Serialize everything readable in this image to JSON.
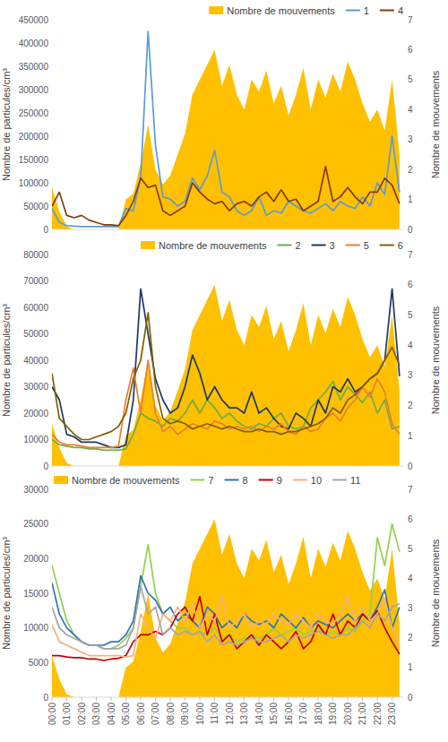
{
  "chart_data": [
    {
      "type": "line",
      "x": [
        0,
        0.5,
        1,
        1.5,
        2,
        2.5,
        3,
        3.5,
        4,
        4.5,
        5,
        5.5,
        6,
        6.5,
        7,
        7.5,
        8,
        8.5,
        9,
        9.5,
        10,
        10.5,
        11,
        11.5,
        12,
        12.5,
        13,
        13.5,
        14,
        14.5,
        15,
        15.5,
        16,
        16.5,
        17,
        17.5,
        18,
        18.5,
        19,
        19.5,
        20,
        20.5,
        21,
        21.5,
        22,
        22.5,
        23,
        23.5
      ],
      "xlim": [
        0,
        23.75
      ],
      "ylim": [
        0,
        450000
      ],
      "yticks": [
        0,
        50000,
        100000,
        150000,
        200000,
        250000,
        300000,
        350000,
        400000,
        450000
      ],
      "y2lim": [
        0,
        7
      ],
      "y2ticks": [
        0,
        1,
        2,
        3,
        4,
        5,
        6,
        7
      ],
      "y_label": "Nombre de particules/cm³",
      "y2_label": "Nombre de mouvements",
      "legend": "upper right",
      "series": [
        {
          "name": "Nombre de mouvements",
          "type": "area",
          "axis": "y2",
          "color": "#ffc000",
          "values": [
            1.4,
            0.6,
            0.1,
            0,
            0,
            0,
            0,
            0,
            0,
            0,
            1.0,
            1.2,
            2.2,
            3.5,
            2.0,
            1.5,
            1.8,
            2.5,
            3.2,
            4.5,
            5.0,
            5.5,
            6.0,
            4.8,
            5.5,
            4.5,
            4.0,
            5.0,
            4.6,
            5.3,
            4.2,
            4.8,
            3.8,
            4.5,
            5.4,
            4.0,
            5.0,
            4.4,
            5.2,
            4.6,
            5.6,
            5.0,
            4.2,
            3.6,
            4.0,
            3.3,
            5.0,
            2.5
          ]
        },
        {
          "name": "1",
          "type": "line",
          "color": "#5b9bd5",
          "values": [
            45000,
            15000,
            8000,
            7000,
            6000,
            6000,
            6000,
            6000,
            6000,
            6000,
            45000,
            40000,
            110000,
            425000,
            180000,
            70000,
            65000,
            50000,
            60000,
            110000,
            85000,
            115000,
            170000,
            80000,
            70000,
            40000,
            30000,
            40000,
            70000,
            30000,
            40000,
            35000,
            60000,
            50000,
            40000,
            35000,
            45000,
            55000,
            40000,
            60000,
            50000,
            45000,
            70000,
            50000,
            100000,
            75000,
            200000,
            80000
          ]
        },
        {
          "name": "4",
          "type": "line",
          "color": "#843c0c",
          "values": [
            50000,
            80000,
            30000,
            25000,
            30000,
            20000,
            15000,
            10000,
            10000,
            8000,
            30000,
            60000,
            110000,
            90000,
            95000,
            40000,
            30000,
            40000,
            50000,
            100000,
            80000,
            65000,
            55000,
            60000,
            40000,
            55000,
            60000,
            50000,
            70000,
            80000,
            60000,
            85000,
            60000,
            65000,
            40000,
            50000,
            60000,
            135000,
            60000,
            70000,
            90000,
            70000,
            55000,
            80000,
            80000,
            110000,
            95000,
            55000
          ]
        }
      ]
    },
    {
      "type": "line",
      "x": [
        0,
        0.5,
        1,
        1.5,
        2,
        2.5,
        3,
        3.5,
        4,
        4.5,
        5,
        5.5,
        6,
        6.5,
        7,
        7.5,
        8,
        8.5,
        9,
        9.5,
        10,
        10.5,
        11,
        11.5,
        12,
        12.5,
        13,
        13.5,
        14,
        14.5,
        15,
        15.5,
        16,
        16.5,
        17,
        17.5,
        18,
        18.5,
        19,
        19.5,
        20,
        20.5,
        21,
        21.5,
        22,
        22.5,
        23,
        23.5
      ],
      "xlim": [
        0,
        23.75
      ],
      "ylim": [
        0,
        80000
      ],
      "yticks": [
        0,
        10000,
        20000,
        30000,
        40000,
        50000,
        60000,
        70000,
        80000
      ],
      "y2lim": [
        0,
        7
      ],
      "y2ticks": [
        0,
        1,
        2,
        3,
        4,
        5,
        6,
        7
      ],
      "y_label": "Nombre de particules/cm³",
      "y2_label": "Nombre de mouvements",
      "legend": "upper right",
      "series": [
        {
          "name": "Nombre de mouvements",
          "type": "area",
          "axis": "y2",
          "color": "#ffc000",
          "values": [
            1.4,
            0.6,
            0.1,
            0,
            0,
            0,
            0,
            0,
            0,
            0,
            1.0,
            1.2,
            2.2,
            3.5,
            2.0,
            1.5,
            1.8,
            2.5,
            3.2,
            4.5,
            5.0,
            5.5,
            6.0,
            4.8,
            5.5,
            4.5,
            4.0,
            5.0,
            4.6,
            5.3,
            4.2,
            4.8,
            3.8,
            4.5,
            5.4,
            4.0,
            5.0,
            4.4,
            5.2,
            4.6,
            5.6,
            5.0,
            4.2,
            3.6,
            4.0,
            3.3,
            5.0,
            2.5
          ]
        },
        {
          "name": "2",
          "type": "line",
          "color": "#70ad47",
          "values": [
            10000,
            8000,
            7500,
            7000,
            7000,
            6500,
            6500,
            6000,
            6000,
            6000,
            6500,
            12000,
            20000,
            18000,
            17000,
            15000,
            18000,
            17000,
            20000,
            25000,
            20000,
            25000,
            22000,
            18000,
            20000,
            17000,
            15000,
            14000,
            16000,
            15000,
            18000,
            20000,
            15000,
            14000,
            15000,
            22000,
            25000,
            28000,
            32000,
            25000,
            30000,
            27000,
            24000,
            28000,
            20000,
            25000,
            14000,
            15000
          ]
        },
        {
          "name": "3",
          "type": "line",
          "color": "#1f3864",
          "values": [
            30000,
            25000,
            12000,
            11000,
            9000,
            9000,
            9000,
            8000,
            7000,
            7000,
            8000,
            25000,
            67000,
            50000,
            33000,
            25000,
            20000,
            22000,
            30000,
            42000,
            35000,
            25000,
            30000,
            25000,
            22000,
            22000,
            20000,
            28000,
            20000,
            22000,
            18000,
            15000,
            14000,
            20000,
            18000,
            15000,
            25000,
            20000,
            30000,
            28000,
            33000,
            28000,
            30000,
            33000,
            35000,
            40000,
            67000,
            34000
          ]
        },
        {
          "name": "5",
          "type": "line",
          "color": "#ed7d31",
          "values": [
            12000,
            9000,
            8000,
            8000,
            7500,
            7000,
            7000,
            7000,
            7000,
            7500,
            25000,
            37000,
            20000,
            40000,
            20000,
            13000,
            15000,
            12000,
            14000,
            16000,
            15000,
            14000,
            17000,
            16000,
            14000,
            15000,
            14000,
            15000,
            13000,
            15000,
            14000,
            16000,
            13000,
            12000,
            15000,
            13000,
            14000,
            18000,
            20000,
            17000,
            22000,
            25000,
            30000,
            26000,
            33000,
            28000,
            16000,
            12000
          ]
        },
        {
          "name": "6",
          "type": "line",
          "color": "#7f6000",
          "values": [
            35000,
            18000,
            15000,
            12000,
            10000,
            10000,
            11000,
            12000,
            13000,
            15000,
            20000,
            33000,
            40000,
            58000,
            30000,
            18000,
            16000,
            17000,
            16000,
            14000,
            15000,
            16000,
            15000,
            14000,
            15000,
            14000,
            13000,
            13000,
            14000,
            13000,
            13000,
            12000,
            13000,
            13000,
            14000,
            15000,
            16000,
            18000,
            22000,
            20000,
            25000,
            27000,
            30000,
            33000,
            35000,
            40000,
            45000,
            38000
          ]
        }
      ]
    },
    {
      "type": "line",
      "x": [
        0,
        0.5,
        1,
        1.5,
        2,
        2.5,
        3,
        3.5,
        4,
        4.5,
        5,
        5.5,
        6,
        6.5,
        7,
        7.5,
        8,
        8.5,
        9,
        9.5,
        10,
        10.5,
        11,
        11.5,
        12,
        12.5,
        13,
        13.5,
        14,
        14.5,
        15,
        15.5,
        16,
        16.5,
        17,
        17.5,
        18,
        18.5,
        19,
        19.5,
        20,
        20.5,
        21,
        21.5,
        22,
        22.5,
        23,
        23.5
      ],
      "xlim": [
        0,
        23.75
      ],
      "xticks": [
        {
          "value": 0,
          "label": "00:00"
        },
        {
          "value": 1,
          "label": "01:00"
        },
        {
          "value": 2,
          "label": "02:00"
        },
        {
          "value": 3,
          "label": "03:00"
        },
        {
          "value": 4,
          "label": "04:00"
        },
        {
          "value": 5,
          "label": "05:00"
        },
        {
          "value": 6,
          "label": "06:00"
        },
        {
          "value": 7,
          "label": "07:00"
        },
        {
          "value": 8,
          "label": "08:00"
        },
        {
          "value": 9,
          "label": "09:00"
        },
        {
          "value": 10,
          "label": "10:00"
        },
        {
          "value": 11,
          "label": "11:00"
        },
        {
          "value": 12,
          "label": "12:00"
        },
        {
          "value": 13,
          "label": "13:00"
        },
        {
          "value": 14,
          "label": "14:00"
        },
        {
          "value": 15,
          "label": "15:00"
        },
        {
          "value": 16,
          "label": "16:00"
        },
        {
          "value": 17,
          "label": "17:00"
        },
        {
          "value": 18,
          "label": "18:00"
        },
        {
          "value": 19,
          "label": "19:00"
        },
        {
          "value": 20,
          "label": "20:00"
        },
        {
          "value": 21,
          "label": "21:00"
        },
        {
          "value": 22,
          "label": "22:00"
        },
        {
          "value": 23,
          "label": "23:00"
        }
      ],
      "ylim": [
        0,
        30000
      ],
      "yticks": [
        0,
        5000,
        10000,
        15000,
        20000,
        25000,
        30000
      ],
      "y2lim": [
        0,
        7
      ],
      "y2ticks": [
        0,
        1,
        2,
        3,
        4,
        5,
        6,
        7
      ],
      "y_label": "Nombre de particules/cm³",
      "y2_label": "Nombre de mouvements",
      "legend": "upper left",
      "series": [
        {
          "name": "Nombre de mouvements",
          "type": "area",
          "axis": "y2",
          "color": "#ffc000",
          "values": [
            1.4,
            0.6,
            0.1,
            0,
            0,
            0,
            0,
            0,
            0,
            0,
            1.0,
            1.2,
            2.2,
            3.5,
            2.0,
            1.5,
            1.8,
            2.5,
            3.2,
            4.5,
            5.0,
            5.5,
            6.0,
            4.8,
            5.5,
            4.5,
            4.0,
            5.0,
            4.6,
            5.3,
            4.2,
            4.8,
            3.8,
            4.5,
            5.4,
            4.0,
            5.0,
            4.4,
            5.2,
            4.6,
            5.6,
            5.0,
            4.2,
            3.6,
            4.0,
            3.3,
            5.0,
            2.5
          ]
        },
        {
          "name": "7",
          "type": "line",
          "color": "#92d050",
          "values": [
            19000,
            15000,
            11000,
            9000,
            8000,
            7500,
            7500,
            7000,
            7000,
            7500,
            8500,
            10000,
            16000,
            22000,
            15000,
            12000,
            11000,
            10000,
            10000,
            9000,
            9500,
            9000,
            10000,
            8500,
            9000,
            8000,
            8500,
            9000,
            8500,
            9000,
            10000,
            9000,
            9500,
            10000,
            9000,
            9500,
            10000,
            9000,
            9500,
            9000,
            10000,
            9500,
            11000,
            12000,
            23000,
            19000,
            25000,
            21000
          ]
        },
        {
          "name": "8",
          "type": "line",
          "color": "#2e75b6",
          "values": [
            16500,
            12000,
            10000,
            9000,
            8000,
            7500,
            7500,
            7500,
            8000,
            8000,
            9000,
            11000,
            17500,
            15000,
            14000,
            12000,
            13000,
            11000,
            12000,
            11000,
            10000,
            13000,
            12000,
            10000,
            11000,
            10000,
            12000,
            11000,
            10500,
            11000,
            10000,
            12000,
            11000,
            10000,
            11500,
            10000,
            11000,
            10500,
            10000,
            11000,
            12000,
            11000,
            12000,
            11000,
            13000,
            15500,
            10000,
            13000
          ]
        },
        {
          "name": "9",
          "type": "line",
          "color": "#c00000",
          "values": [
            6000,
            6000,
            5800,
            5700,
            5700,
            5500,
            5500,
            5300,
            5500,
            5600,
            6000,
            8000,
            9000,
            9000,
            9500,
            9000,
            10000,
            12000,
            13000,
            11000,
            14500,
            9000,
            12000,
            8000,
            9000,
            7000,
            8000,
            9000,
            7500,
            9000,
            8000,
            7000,
            8000,
            9500,
            7000,
            8000,
            10500,
            9000,
            12000,
            9000,
            11000,
            10000,
            12000,
            11000,
            12500,
            10000,
            8000,
            6200
          ]
        },
        {
          "name": "10",
          "type": "line",
          "color": "#f4b183",
          "values": [
            10500,
            8000,
            7500,
            7000,
            6500,
            6000,
            6000,
            6000,
            6000,
            6000,
            5800,
            6000,
            12000,
            10000,
            8500,
            12000,
            11000,
            13000,
            11000,
            13500,
            10000,
            12000,
            11000,
            14500,
            10000,
            11000,
            12000,
            10000,
            11000,
            10500,
            12000,
            11000,
            10500,
            12000,
            11000,
            10000,
            12000,
            11000,
            10500,
            12000,
            14500,
            11000,
            13000,
            11000,
            12000,
            14000,
            10000,
            7500
          ]
        },
        {
          "name": "11",
          "type": "line",
          "color": "#a5a5a5",
          "values": [
            13000,
            10000,
            9000,
            8500,
            8000,
            7500,
            7500,
            7000,
            7000,
            7000,
            7500,
            10000,
            16000,
            12000,
            13000,
            9000,
            10000,
            9000,
            9500,
            9000,
            9500,
            8000,
            9000,
            7500,
            8000,
            7500,
            8000,
            8500,
            8000,
            8000,
            8500,
            9000,
            8000,
            9000,
            8500,
            9000,
            9500,
            9000,
            8500,
            9000,
            9000,
            10000,
            11000,
            10000,
            12000,
            11000,
            13000,
            13500
          ]
        }
      ]
    }
  ]
}
